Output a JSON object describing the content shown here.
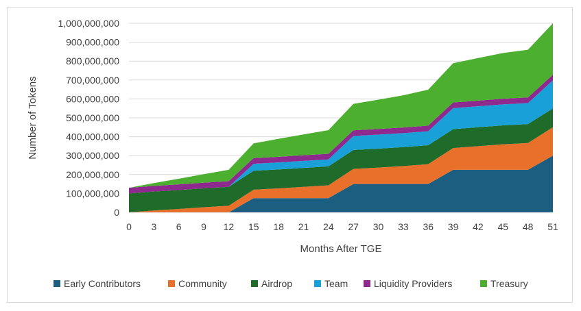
{
  "chart_data": {
    "type": "area",
    "stacked": true,
    "title": "",
    "xlabel": "Months After TGE",
    "ylabel": "Number of Tokens",
    "x": [
      0,
      3,
      6,
      9,
      12,
      15,
      18,
      21,
      24,
      27,
      30,
      33,
      36,
      39,
      42,
      45,
      48,
      51
    ],
    "x_tick_labels": [
      "0",
      "3",
      "6",
      "9",
      "12",
      "15",
      "18",
      "21",
      "24",
      "27",
      "30",
      "33",
      "36",
      "39",
      "42",
      "45",
      "48",
      "51"
    ],
    "ylim": [
      0,
      1000000000
    ],
    "y_tick_labels": [
      "0",
      "100,000,000",
      "200,000,000",
      "300,000,000",
      "400,000,000",
      "500,000,000",
      "600,000,000",
      "700,000,000",
      "800,000,000",
      "900,000,000",
      "1,000,000,000"
    ],
    "grid": true,
    "legend_position": "bottom",
    "series": [
      {
        "name": "Early Contributors",
        "color": "#1b5e80",
        "values": [
          0,
          0,
          0,
          0,
          0,
          75000000,
          75000000,
          75000000,
          75000000,
          150000000,
          150000000,
          150000000,
          150000000,
          225000000,
          225000000,
          225000000,
          225000000,
          300000000
        ]
      },
      {
        "name": "Community",
        "color": "#e8702a",
        "values": [
          0,
          10000000,
          18000000,
          27000000,
          35000000,
          45000000,
          52000000,
          60000000,
          68000000,
          80000000,
          87000000,
          95000000,
          105000000,
          115000000,
          125000000,
          135000000,
          142000000,
          150000000
        ]
      },
      {
        "name": "Airdrop",
        "color": "#1e6b2a",
        "values": [
          100000000,
          100000000,
          100000000,
          100000000,
          100000000,
          100000000,
          100000000,
          100000000,
          100000000,
          100000000,
          100000000,
          100000000,
          100000000,
          100000000,
          100000000,
          100000000,
          100000000,
          100000000
        ]
      },
      {
        "name": "Team",
        "color": "#1aa0d8",
        "values": [
          0,
          0,
          0,
          0,
          0,
          37000000,
          37000000,
          37000000,
          37000000,
          74000000,
          74000000,
          74000000,
          74000000,
          111000000,
          111000000,
          111000000,
          111000000,
          148000000
        ]
      },
      {
        "name": "Liquidity Providers",
        "color": "#8e2a8e",
        "values": [
          30000000,
          30000000,
          30000000,
          30000000,
          30000000,
          30000000,
          30000000,
          30000000,
          30000000,
          30000000,
          30000000,
          30000000,
          30000000,
          30000000,
          30000000,
          30000000,
          30000000,
          30000000
        ]
      },
      {
        "name": "Treasury",
        "color": "#4caf2f",
        "values": [
          0,
          15000000,
          30000000,
          45000000,
          60000000,
          78000000,
          95000000,
          110000000,
          125000000,
          140000000,
          155000000,
          170000000,
          190000000,
          208000000,
          225000000,
          242000000,
          252000000,
          272000000
        ]
      }
    ]
  }
}
